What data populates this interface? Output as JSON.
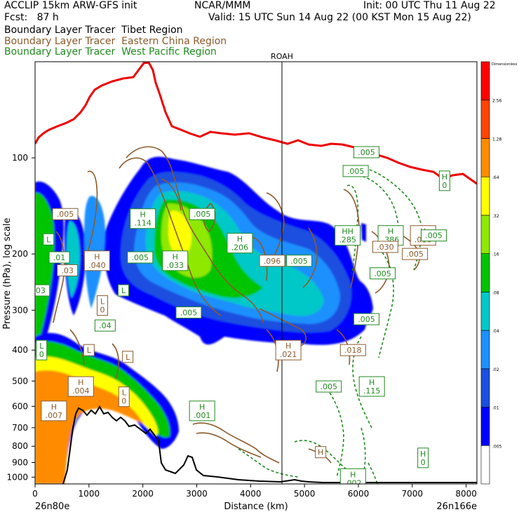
{
  "header": {
    "model": "ACCLIP 15km ARW-GFS init",
    "org": "NCAR/MMM",
    "init": "Init: 00 UTC Thu 11 Aug 22",
    "fcst": "Fcst:   87 h",
    "valid": "Valid: 15 UTC Sun 14 Aug 22 (00 KST Mon 15 Aug 22)",
    "tracers": [
      {
        "label": "Boundary Layer Tracer  Tibet Region",
        "color": "#000000"
      },
      {
        "label": "Boundary Layer Tracer  Eastern China Region",
        "color": "#8b5a2b"
      },
      {
        "label": "Boundary Layer Tracer  West Pacific Region",
        "color": "#1f8a1f"
      }
    ]
  },
  "chart_data": {
    "type": "contour-cross-section",
    "xlabel": "Distance (km)",
    "ylabel": "Pressure (hPa), log scale",
    "marker_label": "ROAH",
    "marker_x": 4600,
    "xlim": [
      0,
      8200
    ],
    "ylim": [
      1050,
      50
    ],
    "y_scale": "log",
    "x_ticks": [
      0,
      1000,
      2000,
      3000,
      4000,
      5000,
      6000,
      7000,
      8000
    ],
    "y_ticks": [
      100,
      200,
      300,
      400,
      500,
      600,
      700,
      800,
      900,
      1000
    ],
    "endpoints": {
      "left": "26n80e",
      "right": "26n166e"
    },
    "colorbar": {
      "top_label": "Dimensionless",
      "levels": [
        ".005",
        ".01",
        ".02",
        ".04",
        ".08",
        ".16",
        ".32",
        ".64",
        "1.28",
        "2.56"
      ],
      "colors": [
        "#ffffff",
        "#0000ff",
        "#1a4fe0",
        "#1e90ff",
        "#00c8c8",
        "#00c400",
        "#8fe800",
        "#ffff00",
        "#ff8c00",
        "#ff4500",
        "#ff0000"
      ]
    },
    "tropopause_line_color": "#ee0000",
    "terrain_line_color": "#000000",
    "labels": [
      {
        "text": ".005",
        "x": 560,
        "p": 150,
        "c": "brown"
      },
      {
        "text": "H\n.114",
        "x": 2000,
        "p": 155,
        "c": "green"
      },
      {
        "text": ".005",
        "x": 3100,
        "p": 150,
        "c": "green"
      },
      {
        "text": "H\n.206",
        "x": 3800,
        "p": 185,
        "c": "green"
      },
      {
        "text": ".096",
        "x": 4400,
        "p": 210,
        "c": "brown"
      },
      {
        "text": ".005",
        "x": 4900,
        "p": 210,
        "c": "green"
      },
      {
        "text": ".005",
        "x": 1950,
        "p": 205,
        "c": "green"
      },
      {
        "text": "H\n.040",
        "x": 1150,
        "p": 210,
        "c": "brown"
      },
      {
        "text": "H\n.033",
        "x": 2600,
        "p": 210,
        "c": "green"
      },
      {
        "text": ".01",
        "x": 450,
        "p": 205,
        "c": "green"
      },
      {
        "text": ".03",
        "x": 600,
        "p": 225,
        "c": "brown"
      },
      {
        "text": ".03",
        "x": 80,
        "p": 260,
        "c": "green"
      },
      {
        "text": "L",
        "x": 250,
        "p": 180,
        "c": "green"
      },
      {
        "text": "L",
        "x": 1640,
        "p": 260,
        "c": "green"
      },
      {
        "text": "L\n0",
        "x": 1250,
        "p": 290,
        "c": "brown"
      },
      {
        "text": ".005",
        "x": 2850,
        "p": 305,
        "c": "green"
      },
      {
        "text": ".005",
        "x": 6150,
        "p": 96,
        "c": "green"
      },
      {
        "text": ".005",
        "x": 5950,
        "p": 110,
        "c": "green"
      },
      {
        "text": "H\n0",
        "x": 7600,
        "p": 118,
        "c": "green"
      },
      {
        "text": "HH\n.285",
        "x": 5800,
        "p": 175,
        "c": "green"
      },
      {
        "text": "H\n.386",
        "x": 6600,
        "p": 175,
        "c": "green"
      },
      {
        "text": ".030",
        "x": 6500,
        "p": 190,
        "c": "brown"
      },
      {
        "text": "H\n.016",
        "x": 7200,
        "p": 175,
        "c": "brown"
      },
      {
        "text": ".005",
        "x": 7400,
        "p": 175,
        "c": "green"
      },
      {
        "text": ".005",
        "x": 7050,
        "p": 200,
        "c": "brown"
      },
      {
        "text": ".005",
        "x": 6450,
        "p": 230,
        "c": "green"
      },
      {
        "text": ".04",
        "x": 1300,
        "p": 335,
        "c": "green"
      },
      {
        "text": ".005",
        "x": 6150,
        "p": 320,
        "c": "green"
      },
      {
        "text": "L\n0",
        "x": 120,
        "p": 400,
        "c": "green"
      },
      {
        "text": "L",
        "x": 1000,
        "p": 400,
        "c": "brown"
      },
      {
        "text": "L",
        "x": 1720,
        "p": 420,
        "c": "brown"
      },
      {
        "text": "H\n.021",
        "x": 4700,
        "p": 400,
        "c": "brown"
      },
      {
        "text": ".018",
        "x": 5900,
        "p": 400,
        "c": "brown"
      },
      {
        "text": "H\n.004",
        "x": 850,
        "p": 520,
        "c": "brown"
      },
      {
        "text": "H\n.115",
        "x": 6250,
        "p": 520,
        "c": "green"
      },
      {
        "text": ".005",
        "x": 5450,
        "p": 520,
        "c": "green"
      },
      {
        "text": "L\n0",
        "x": 1650,
        "p": 560,
        "c": "brown"
      },
      {
        "text": "H\n.007",
        "x": 350,
        "p": 620,
        "c": "brown"
      },
      {
        "text": "H\n.001",
        "x": 3100,
        "p": 620,
        "c": "green"
      },
      {
        "text": "H",
        "x": 5300,
        "p": 835,
        "c": "brown"
      },
      {
        "text": "H\n0",
        "x": 7200,
        "p": 870,
        "c": "green"
      },
      {
        "text": "H\n.002",
        "x": 5900,
        "p": 1010,
        "c": "green"
      }
    ]
  }
}
